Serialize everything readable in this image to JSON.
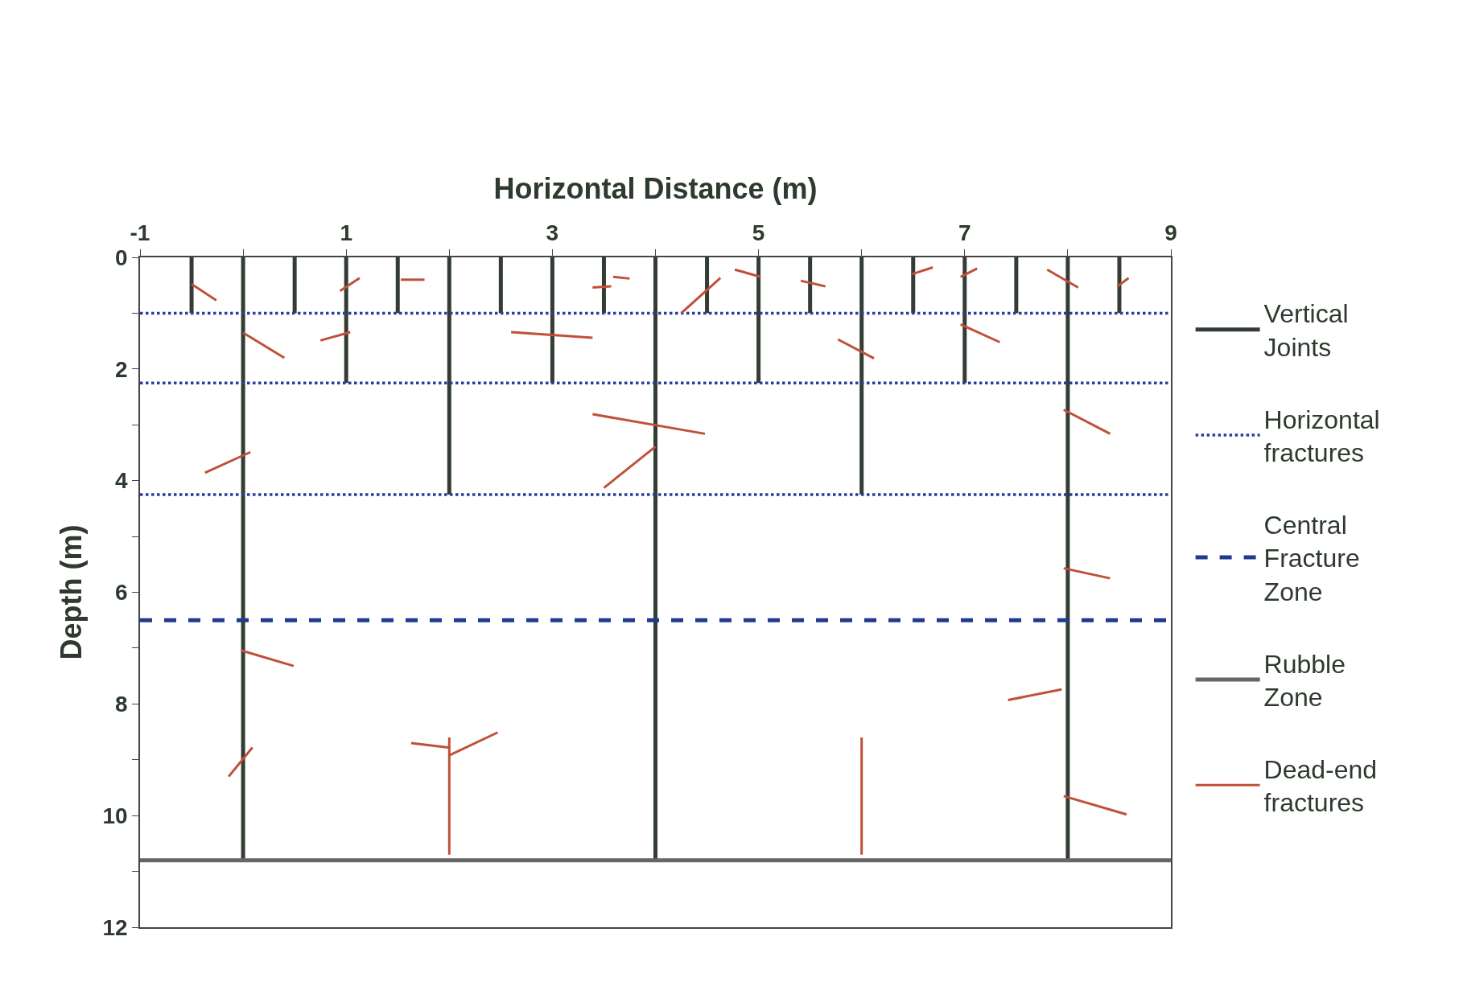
{
  "chart_data": {
    "type": "line",
    "xlabel": "Horizontal Distance (m)",
    "ylabel": "Depth (m)",
    "xlim": [
      -1,
      9
    ],
    "ylim": [
      12,
      0
    ],
    "xticks": [
      -1,
      {
        "value": 0,
        "label": null
      },
      1,
      {
        "value": 2,
        "label": null
      },
      3,
      {
        "value": 4,
        "label": null
      },
      5,
      {
        "value": 6,
        "label": null
      },
      7,
      {
        "value": 8,
        "label": null
      },
      9
    ],
    "yticks": [
      0,
      {
        "value": 1,
        "label": null
      },
      2,
      {
        "value": 3,
        "label": null
      },
      4,
      {
        "value": 5,
        "label": null
      },
      6,
      {
        "value": 7,
        "label": null
      },
      8,
      {
        "value": 9,
        "label": null
      },
      10,
      {
        "value": 11,
        "label": null
      },
      12
    ],
    "legend": "right",
    "marker": "none",
    "series": [
      {
        "name": "Vertical Joints",
        "color": "#333d33",
        "line_style": "solid",
        "x": [
          -0.5,
          -0.5
        ],
        "values": [
          0,
          1
        ]
      },
      {
        "color": "#333d33",
        "line_style": "solid",
        "x": [
          0.5,
          0.5
        ],
        "values": [
          0,
          1
        ]
      },
      {
        "color": "#333d33",
        "line_style": "solid",
        "x": [
          1.5,
          1.5
        ],
        "values": [
          0,
          1
        ]
      },
      {
        "color": "#333d33",
        "line_style": "solid",
        "x": [
          2.5,
          2.5
        ],
        "values": [
          0,
          1
        ]
      },
      {
        "color": "#333d33",
        "line_style": "solid",
        "x": [
          3.5,
          3.5
        ],
        "values": [
          0,
          1
        ]
      },
      {
        "color": "#333d33",
        "line_style": "solid",
        "x": [
          4.5,
          4.5
        ],
        "values": [
          0,
          1
        ]
      },
      {
        "color": "#333d33",
        "line_style": "solid",
        "x": [
          5.5,
          5.5
        ],
        "values": [
          0,
          1
        ]
      },
      {
        "color": "#333d33",
        "line_style": "solid",
        "x": [
          6.5,
          6.5
        ],
        "values": [
          0,
          1
        ]
      },
      {
        "color": "#333d33",
        "line_style": "solid",
        "x": [
          7.5,
          7.5
        ],
        "values": [
          0,
          1
        ]
      },
      {
        "color": "#333d33",
        "line_style": "solid",
        "x": [
          8.5,
          8.5
        ],
        "values": [
          0,
          1
        ]
      },
      {
        "color": "#333d33",
        "line_style": "solid",
        "x": [
          1,
          1
        ],
        "values": [
          0,
          2.25
        ]
      },
      {
        "color": "#333d33",
        "line_style": "solid",
        "x": [
          3,
          3
        ],
        "values": [
          0,
          2.25
        ]
      },
      {
        "color": "#333d33",
        "line_style": "solid",
        "x": [
          5,
          5
        ],
        "values": [
          0,
          2.25
        ]
      },
      {
        "color": "#333d33",
        "line_style": "solid",
        "x": [
          7,
          7
        ],
        "values": [
          0,
          2.25
        ]
      },
      {
        "color": "#333d33",
        "line_style": "solid",
        "x": [
          2,
          2
        ],
        "values": [
          0,
          4.25
        ]
      },
      {
        "color": "#333d33",
        "line_style": "solid",
        "x": [
          6,
          6
        ],
        "values": [
          0,
          4.25
        ]
      },
      {
        "color": "#333d33",
        "line_style": "solid",
        "x": [
          0,
          0
        ],
        "values": [
          0,
          10.8
        ]
      },
      {
        "color": "#333d33",
        "line_style": "solid",
        "x": [
          4,
          4
        ],
        "values": [
          0,
          10.8
        ]
      },
      {
        "color": "#333d33",
        "line_style": "solid",
        "x": [
          8,
          8
        ],
        "values": [
          0,
          10.8
        ]
      },
      {
        "name": "Horizontal fractures",
        "color": "#2a3d9c",
        "line_style": "dotted",
        "x": [
          -1,
          9
        ],
        "values": [
          1,
          1
        ]
      },
      {
        "color": "#2a3d9c",
        "line_style": "dotted",
        "x": [
          -1,
          9
        ],
        "values": [
          2.25,
          2.25
        ]
      },
      {
        "color": "#2a3d9c",
        "line_style": "dotted",
        "x": [
          -1,
          9
        ],
        "values": [
          4.25,
          4.25
        ]
      },
      {
        "name": "Central Fracture Zone",
        "color": "#1f3a8f",
        "line_style": "dashed",
        "x": [
          -1,
          9
        ],
        "values": [
          6.5,
          6.5
        ]
      },
      {
        "name": "Rubble Zone",
        "color": "#666666",
        "line_style": "solid",
        "x": [
          -1,
          9
        ],
        "values": [
          10.8,
          10.8
        ]
      },
      {
        "name": "Dead-end fractures",
        "color": "#c0503a",
        "line_style": "solid",
        "x": [
          -0.5,
          -0.26
        ],
        "values": [
          0.48,
          0.77
        ]
      },
      {
        "color": "#c0503a",
        "line_style": "solid",
        "x": [
          0,
          0.4
        ],
        "values": [
          1.35,
          1.8
        ]
      },
      {
        "color": "#c0503a",
        "line_style": "solid",
        "x": [
          0.94,
          1.13
        ],
        "values": [
          0.6,
          0.37
        ]
      },
      {
        "color": "#c0503a",
        "line_style": "solid",
        "x": [
          1.53,
          1.76
        ],
        "values": [
          0.4,
          0.4
        ]
      },
      {
        "color": "#c0503a",
        "line_style": "solid",
        "x": [
          0.75,
          1.04
        ],
        "values": [
          1.49,
          1.34
        ]
      },
      {
        "color": "#c0503a",
        "line_style": "solid",
        "x": [
          2.6,
          3.39
        ],
        "values": [
          1.34,
          1.44
        ]
      },
      {
        "color": "#c0503a",
        "line_style": "solid",
        "x": [
          3.39,
          3.57
        ],
        "values": [
          0.54,
          0.52
        ]
      },
      {
        "color": "#c0503a",
        "line_style": "solid",
        "x": [
          3.59,
          3.75
        ],
        "values": [
          0.35,
          0.38
        ]
      },
      {
        "color": "#c0503a",
        "line_style": "solid",
        "x": [
          4.25,
          4.63
        ],
        "values": [
          1.0,
          0.37
        ]
      },
      {
        "color": "#c0503a",
        "line_style": "solid",
        "x": [
          4.77,
          5.02
        ],
        "values": [
          0.22,
          0.35
        ]
      },
      {
        "color": "#c0503a",
        "line_style": "solid",
        "x": [
          5.41,
          5.65
        ],
        "values": [
          0.42,
          0.52
        ]
      },
      {
        "color": "#c0503a",
        "line_style": "solid",
        "x": [
          5.77,
          6.12
        ],
        "values": [
          1.47,
          1.81
        ]
      },
      {
        "color": "#c0503a",
        "line_style": "solid",
        "x": [
          6.49,
          6.69
        ],
        "values": [
          0.3,
          0.18
        ]
      },
      {
        "color": "#c0503a",
        "line_style": "solid",
        "x": [
          6.96,
          7.12
        ],
        "values": [
          0.35,
          0.2
        ]
      },
      {
        "color": "#c0503a",
        "line_style": "solid",
        "x": [
          6.96,
          7.34
        ],
        "values": [
          1.2,
          1.52
        ]
      },
      {
        "color": "#c0503a",
        "line_style": "solid",
        "x": [
          7.8,
          8.1
        ],
        "values": [
          0.22,
          0.54
        ]
      },
      {
        "color": "#c0503a",
        "line_style": "solid",
        "x": [
          8.48,
          8.59
        ],
        "values": [
          0.52,
          0.37
        ]
      },
      {
        "color": "#c0503a",
        "line_style": "solid",
        "x": [
          -0.37,
          0.07
        ],
        "values": [
          3.86,
          3.49
        ]
      },
      {
        "color": "#c0503a",
        "line_style": "solid",
        "x": [
          3.39,
          4.48
        ],
        "values": [
          2.81,
          3.16
        ]
      },
      {
        "color": "#c0503a",
        "line_style": "solid",
        "x": [
          3.5,
          4.0
        ],
        "values": [
          4.13,
          3.39
        ]
      },
      {
        "color": "#c0503a",
        "line_style": "solid",
        "x": [
          7.96,
          8.41
        ],
        "values": [
          2.73,
          3.16
        ]
      },
      {
        "color": "#c0503a",
        "line_style": "solid",
        "x": [
          7.96,
          8.41
        ],
        "values": [
          5.57,
          5.75
        ]
      },
      {
        "color": "#c0503a",
        "line_style": "solid",
        "x": [
          -0.02,
          0.49
        ],
        "values": [
          7.04,
          7.32
        ]
      },
      {
        "color": "#c0503a",
        "line_style": "solid",
        "x": [
          7.42,
          7.94
        ],
        "values": [
          7.93,
          7.74
        ]
      },
      {
        "color": "#c0503a",
        "line_style": "solid",
        "x": [
          -0.14,
          0.09
        ],
        "values": [
          9.3,
          8.78
        ]
      },
      {
        "color": "#c0503a",
        "line_style": "solid",
        "x": [
          1.63,
          1.99
        ],
        "values": [
          8.7,
          8.78
        ]
      },
      {
        "color": "#c0503a",
        "line_style": "solid",
        "x": [
          1.99,
          2.47
        ],
        "values": [
          8.93,
          8.51
        ]
      },
      {
        "color": "#c0503a",
        "line_style": "solid",
        "x": [
          2,
          2
        ],
        "values": [
          8.6,
          10.7
        ]
      },
      {
        "color": "#c0503a",
        "line_style": "solid",
        "x": [
          6,
          6
        ],
        "values": [
          8.6,
          10.7
        ]
      },
      {
        "color": "#c0503a",
        "line_style": "solid",
        "x": [
          7.96,
          8.57
        ],
        "values": [
          9.65,
          9.98
        ]
      }
    ]
  }
}
